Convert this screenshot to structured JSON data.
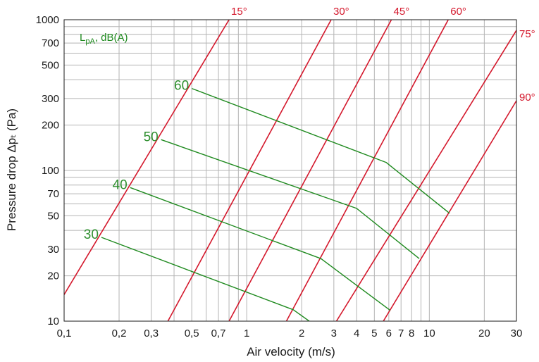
{
  "chart_data": {
    "type": "line",
    "xlabel": "Air velocity (m/s)",
    "ylabel": "Pressure drop Δpₜ (Pa)",
    "x_scale": "log",
    "y_scale": "log",
    "xlim": [
      0.1,
      30
    ],
    "ylim": [
      10,
      1000
    ],
    "x_ticks": [
      {
        "value": 0.1,
        "label": "0,1"
      },
      {
        "value": 0.2,
        "label": "0,2"
      },
      {
        "value": 0.3,
        "label": "0,3"
      },
      {
        "value": 0.5,
        "label": "0,5"
      },
      {
        "value": 0.7,
        "label": "0,7"
      },
      {
        "value": 1,
        "label": "1"
      },
      {
        "value": 2,
        "label": "2"
      },
      {
        "value": 3,
        "label": "3"
      },
      {
        "value": 4,
        "label": "4"
      },
      {
        "value": 5,
        "label": "5"
      },
      {
        "value": 6,
        "label": "6"
      },
      {
        "value": 7,
        "label": "7"
      },
      {
        "value": 8,
        "label": "8"
      },
      {
        "value": 10,
        "label": "10"
      },
      {
        "value": 20,
        "label": "20"
      },
      {
        "value": 30,
        "label": "30"
      }
    ],
    "y_ticks": [
      {
        "value": 10,
        "label": "10"
      },
      {
        "value": 20,
        "label": "20"
      },
      {
        "value": 30,
        "label": "30"
      },
      {
        "value": 50,
        "label": "50"
      },
      {
        "value": 70,
        "label": "70"
      },
      {
        "value": 100,
        "label": "100"
      },
      {
        "value": 200,
        "label": "200"
      },
      {
        "value": 300,
        "label": "300"
      },
      {
        "value": 500,
        "label": "500"
      },
      {
        "value": 700,
        "label": "700"
      },
      {
        "value": 1000,
        "label": "1000"
      }
    ],
    "x_grid": [
      0.1,
      0.2,
      0.3,
      0.4,
      0.5,
      0.6,
      0.7,
      0.8,
      0.9,
      1,
      2,
      3,
      4,
      5,
      6,
      7,
      8,
      9,
      10,
      20,
      30
    ],
    "y_grid": [
      10,
      20,
      30,
      40,
      50,
      60,
      70,
      80,
      90,
      100,
      200,
      300,
      400,
      500,
      600,
      700,
      800,
      900,
      1000
    ],
    "grid": true,
    "legend": "top-left",
    "unit_label_main": "L",
    "unit_label_sub": "pA",
    "unit_label_rest": ", dB(A)",
    "damper_angle_series": [
      {
        "name": "15°",
        "color": "#d4182c",
        "points": [
          [
            0.1,
            15
          ],
          [
            0.8,
            1000
          ]
        ]
      },
      {
        "name": "30°",
        "color": "#d4182c",
        "points": [
          [
            0.37,
            10
          ],
          [
            2.9,
            1000
          ]
        ]
      },
      {
        "name": "45°",
        "color": "#d4182c",
        "points": [
          [
            0.8,
            10
          ],
          [
            6.2,
            1000
          ]
        ]
      },
      {
        "name": "60°",
        "color": "#d4182c",
        "points": [
          [
            1.65,
            10
          ],
          [
            12.7,
            1000
          ]
        ]
      },
      {
        "name": "75°",
        "color": "#d4182c",
        "points": [
          [
            3.1,
            10
          ],
          [
            30,
            850
          ]
        ]
      },
      {
        "name": "90°",
        "color": "#d4182c",
        "points": [
          [
            5.6,
            10
          ],
          [
            30,
            290
          ]
        ]
      }
    ],
    "sound_level_series": [
      {
        "name": "30",
        "color": "#1f8a1f",
        "points": [
          [
            0.16,
            36
          ],
          [
            1.8,
            11.9
          ],
          [
            2.2,
            10
          ]
        ]
      },
      {
        "name": "40",
        "color": "#1f8a1f",
        "points": [
          [
            0.23,
            77
          ],
          [
            2.55,
            26
          ],
          [
            6.1,
            11.8
          ]
        ]
      },
      {
        "name": "50",
        "color": "#1f8a1f",
        "points": [
          [
            0.34,
            160
          ],
          [
            4.0,
            56
          ],
          [
            8.8,
            26
          ]
        ]
      },
      {
        "name": "60",
        "color": "#1f8a1f",
        "points": [
          [
            0.5,
            350
          ],
          [
            5.8,
            113
          ],
          [
            12.9,
            52
          ]
        ]
      }
    ]
  }
}
